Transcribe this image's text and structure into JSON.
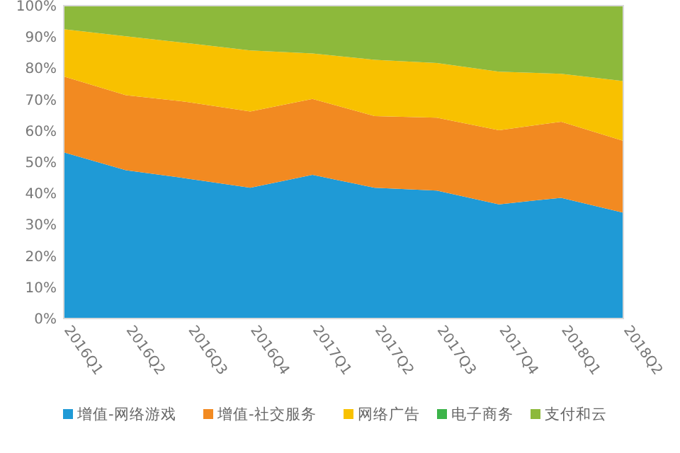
{
  "chart_data": {
    "type": "area",
    "stacked": true,
    "legend": "bottom",
    "categories": [
      "2016Q1",
      "2016Q2",
      "2016Q3",
      "2016Q4",
      "2017Q1",
      "2017Q2",
      "2017Q3",
      "2017Q4",
      "2018Q1",
      "2018Q2"
    ],
    "ylim": [
      0,
      100
    ],
    "yticks": [
      {
        "value": 0,
        "label": "0%"
      },
      {
        "value": 10,
        "label": "10%"
      },
      {
        "value": 20,
        "label": "20%"
      },
      {
        "value": 30,
        "label": "30%"
      },
      {
        "value": 40,
        "label": "40%"
      },
      {
        "value": 50,
        "label": "50%"
      },
      {
        "value": 60,
        "label": "60%"
      },
      {
        "value": 70,
        "label": "70%"
      },
      {
        "value": 80,
        "label": "80%"
      },
      {
        "value": 90,
        "label": "90%"
      },
      {
        "value": 100,
        "label": "100%"
      }
    ],
    "series": [
      {
        "name": "增值-网络游戏",
        "color": "#1f9ad6",
        "values": [
          53.1,
          47.4,
          44.7,
          41.8,
          45.9,
          41.8,
          40.9,
          36.5,
          38.6,
          33.8
        ]
      },
      {
        "name": "增值-社交服务",
        "color": "#f28a21",
        "values": [
          24.3,
          24.0,
          24.5,
          24.4,
          24.3,
          22.9,
          23.3,
          23.7,
          24.3,
          23.0
        ]
      },
      {
        "name": "网络广告",
        "color": "#f8c100",
        "values": [
          15.1,
          18.8,
          18.8,
          19.5,
          14.5,
          18.0,
          17.5,
          18.7,
          15.3,
          19.1
        ]
      },
      {
        "name": "电子商务",
        "color": "#3cb44a",
        "values": [
          null,
          null,
          null,
          null,
          null,
          null,
          null,
          null,
          null,
          null
        ]
      },
      {
        "name": "支付和云",
        "color": "#8db93b",
        "values": [
          7.5,
          9.8,
          12.0,
          14.3,
          15.3,
          17.3,
          18.3,
          21.1,
          21.8,
          24.1
        ]
      }
    ]
  }
}
